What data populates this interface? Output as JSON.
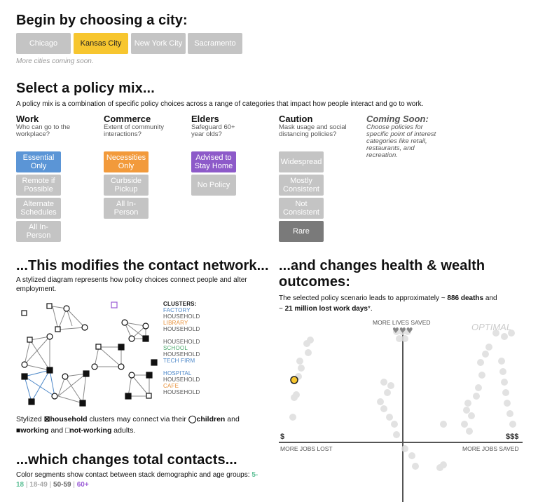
{
  "city_section": {
    "heading": "Begin by choosing a city:",
    "cities": [
      "Chicago",
      "Kansas City",
      "New York City",
      "Sacramento"
    ],
    "selected": "Kansas City",
    "note": "More cities coming soon."
  },
  "policy_section": {
    "heading": "Select a policy mix...",
    "description": "A policy mix is a combination of specific policy choices across a range of categories that impact how people interact and go to work.",
    "columns": [
      {
        "title": "Work",
        "subtitle": "Who can go to the workplace?",
        "options": [
          "Essential Only",
          "Remote if Possible",
          "Alternate Schedules",
          "All In-Person"
        ],
        "selected": "Essential Only"
      },
      {
        "title": "Commerce",
        "subtitle": "Extent of community interactions?",
        "options": [
          "Necessities Only",
          "Curbside Pickup",
          "All In-Person"
        ],
        "selected": "Necessities Only"
      },
      {
        "title": "Elders",
        "subtitle": "Safeguard 60+ year olds?",
        "options": [
          "Advised to Stay Home",
          "No Policy"
        ],
        "selected": "Advised to Stay Home"
      },
      {
        "title": "Caution",
        "subtitle": "Mask usage and social distancing policies?",
        "options": [
          "Widespread",
          "Mostly Consistent",
          "Not Consistent",
          "Rare"
        ],
        "selected": "Rare"
      }
    ],
    "coming_soon": {
      "title": "Coming Soon:",
      "text": "Choose policies for specific point of interest categories like retail, restaurants, and recreation."
    }
  },
  "network_section": {
    "heading": "...This modifies the contact network...",
    "description": "A stylized diagram represents how policy choices connect people and alter employment.",
    "clusters_title": "CLUSTERS:",
    "clusters": [
      {
        "label": "FACTORY",
        "color": "#4a86c8"
      },
      {
        "label": "HOUSEHOLD",
        "color": "#555555"
      },
      {
        "label": "LIBRARY",
        "color": "#e8913a"
      },
      {
        "label": "HOUSEHOLD",
        "color": "#555555"
      },
      {
        "label": "",
        "color": "#555555"
      },
      {
        "label": "HOUSEHOLD",
        "color": "#555555"
      },
      {
        "label": "SCHOOL",
        "color": "#4aa86b"
      },
      {
        "label": "HOUSEHOLD",
        "color": "#555555"
      },
      {
        "label": "TECH FIRM",
        "color": "#4a86c8"
      },
      {
        "label": "",
        "color": "#555555"
      },
      {
        "label": "HOSPITAL",
        "color": "#4a86c8"
      },
      {
        "label": "HOUSEHOLD",
        "color": "#555555"
      },
      {
        "label": "CAFE",
        "color": "#e8913a"
      },
      {
        "label": "HOUSEHOLD",
        "color": "#555555"
      }
    ],
    "legend_parts": {
      "p1": "Stylized ",
      "household": "household",
      "p2": " clusters may connect via their ",
      "children": "children",
      "p3": " and",
      "working": "working",
      "p4": " and ",
      "not_working": "not-working",
      "p5": " adults."
    }
  },
  "contacts_section": {
    "heading": "...which changes total contacts...",
    "description": "Color segments show contact between stack demographic and age groups:",
    "age_groups": [
      {
        "label": "5-18",
        "color": "#5bbf95"
      },
      {
        "label": "18-49",
        "color": "#aaaaaa"
      },
      {
        "label": "50-59",
        "color": "#666666"
      },
      {
        "label": "60+",
        "color": "#9b5cd6"
      }
    ],
    "separator": " | "
  },
  "outcomes_section": {
    "heading_line1": "...and changes health & wealth",
    "heading_line2": "outcomes:",
    "text_before": "The selected policy scenario leads to approximately ~ ",
    "deaths": "886 deaths",
    "text_mid": " and",
    "text_prefix2": "~ ",
    "lost_days": "21 million lost work days",
    "text_after": "*.",
    "axis": {
      "top_label": "MORE LIVES SAVED",
      "optimal_label": "OPTIMAL",
      "left_symbol": "$",
      "right_symbol": "$$$",
      "left_label": "MORE JOBS LOST",
      "right_label": "MORE JOBS SAVED"
    },
    "highlight_color": "#f7c62f"
  }
}
